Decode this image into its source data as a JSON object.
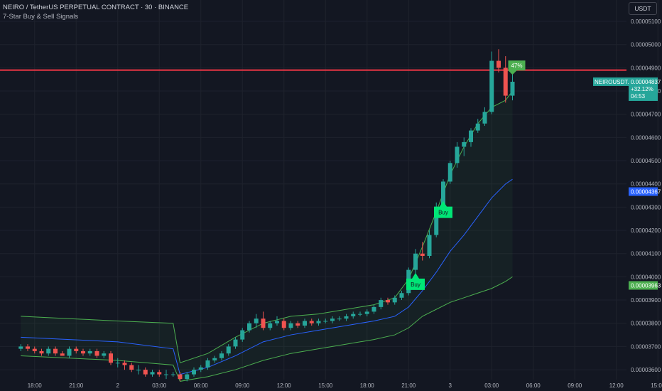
{
  "header": {
    "title": "NEIRO / TetherUS PERPETUAL CONTRACT · 30 · BINANCE",
    "indicator": "7-Star Buy & Sell Signals"
  },
  "toolbar": {
    "currency": "USDT"
  },
  "colors": {
    "background": "#131722",
    "up": "#26a69a",
    "down": "#ef5350",
    "resistance": "#f23645",
    "band_mid": "#2962ff",
    "band_outer": "#4caf50",
    "buy_signal": "#00e676"
  },
  "chart_data": {
    "type": "candlestick",
    "symbol_badge": {
      "name": "NEIROUSDT.P",
      "price": "0.00004837",
      "change": "+32.12%",
      "countdown": "04:53"
    },
    "price_badges": [
      {
        "value": "0.00004367",
        "color": "#2962ff"
      },
      {
        "value": "0.00003963",
        "color": "#4caf50"
      }
    ],
    "ylim": [
      3.58e-05,
      5.18e-05
    ],
    "yticks": [
      "0.00005100",
      "0.00005000",
      "0.00004900",
      "0.00004800",
      "0.00004700",
      "0.00004600",
      "0.00004500",
      "0.00004400",
      "0.00004300",
      "0.00004200",
      "0.00004100",
      "0.00004000",
      "0.00003900",
      "0.00003800",
      "0.00003700",
      "0.00003600"
    ],
    "xticks": [
      {
        "label": "18:00",
        "t": -19
      },
      {
        "label": "21:00",
        "t": -13
      },
      {
        "label": "2",
        "t": -7
      },
      {
        "label": "03:00",
        "t": -1
      },
      {
        "label": "06:00",
        "t": 5
      },
      {
        "label": "09:00",
        "t": 11
      },
      {
        "label": "12:00",
        "t": 17
      },
      {
        "label": "15:00",
        "t": 23
      },
      {
        "label": "18:00",
        "t": 29
      },
      {
        "label": "21:00",
        "t": 35
      },
      {
        "label": "3",
        "t": 41
      },
      {
        "label": "03:00",
        "t": 47
      },
      {
        "label": "06:00",
        "t": 53
      },
      {
        "label": "09:00",
        "t": 59
      },
      {
        "label": "12:00",
        "t": 65
      },
      {
        "label": "15:00",
        "t": 71
      }
    ],
    "resistance": 4.89e-05,
    "candles": [
      [
        -21,
        3.69e-05,
        3.71e-05,
        3.68e-05,
        3.7e-05
      ],
      [
        -20,
        3.7e-05,
        3.71e-05,
        3.68e-05,
        3.69e-05
      ],
      [
        -19,
        3.69e-05,
        3.7e-05,
        3.67e-05,
        3.68e-05
      ],
      [
        -18,
        3.68e-05,
        3.69e-05,
        3.66e-05,
        3.67e-05
      ],
      [
        -17,
        3.67e-05,
        3.7e-05,
        3.66e-05,
        3.69e-05
      ],
      [
        -16,
        3.69e-05,
        3.7e-05,
        3.66e-05,
        3.67e-05
      ],
      [
        -15,
        3.67e-05,
        3.68e-05,
        3.66e-05,
        3.66e-05
      ],
      [
        -14,
        3.66e-05,
        3.7e-05,
        3.65e-05,
        3.69e-05
      ],
      [
        -13,
        3.69e-05,
        3.7e-05,
        3.67e-05,
        3.68e-05
      ],
      [
        -12,
        3.68e-05,
        3.69e-05,
        3.66e-05,
        3.67e-05
      ],
      [
        -11,
        3.67e-05,
        3.69e-05,
        3.66e-05,
        3.68e-05
      ],
      [
        -10,
        3.68e-05,
        3.69e-05,
        3.65e-05,
        3.66e-05
      ],
      [
        -9,
        3.66e-05,
        3.68e-05,
        3.65e-05,
        3.67e-05
      ],
      [
        -8,
        3.67e-05,
        3.68e-05,
        3.62e-05,
        3.63e-05
      ],
      [
        -7,
        3.63e-05,
        3.65e-05,
        3.61e-05,
        3.63e-05
      ],
      [
        -6,
        3.63e-05,
        3.64e-05,
        3.6e-05,
        3.62e-05
      ],
      [
        -5,
        3.62e-05,
        3.63e-05,
        3.59e-05,
        3.6e-05
      ],
      [
        -4,
        3.6e-05,
        3.62e-05,
        3.58e-05,
        3.6e-05
      ],
      [
        -3,
        3.6e-05,
        3.61e-05,
        3.57e-05,
        3.58e-05
      ],
      [
        -2,
        3.58e-05,
        3.6e-05,
        3.57e-05,
        3.59e-05
      ],
      [
        -1,
        3.59e-05,
        3.6e-05,
        3.57e-05,
        3.58e-05
      ],
      [
        0,
        3.58e-05,
        3.6e-05,
        3.56e-05,
        3.58e-05
      ],
      [
        1,
        3.58e-05,
        3.59e-05,
        3.57e-05,
        3.58e-05
      ],
      [
        2,
        3.58e-05,
        3.59e-05,
        3.55e-05,
        3.56e-05
      ],
      [
        3,
        3.56e-05,
        3.59e-05,
        3.55e-05,
        3.58e-05
      ],
      [
        4,
        3.58e-05,
        3.61e-05,
        3.57e-05,
        3.6e-05
      ],
      [
        5,
        3.6e-05,
        3.62e-05,
        3.59e-05,
        3.61e-05
      ],
      [
        6,
        3.61e-05,
        3.65e-05,
        3.6e-05,
        3.64e-05
      ],
      [
        7,
        3.64e-05,
        3.66e-05,
        3.63e-05,
        3.65e-05
      ],
      [
        8,
        3.65e-05,
        3.68e-05,
        3.64e-05,
        3.67e-05
      ],
      [
        9,
        3.67e-05,
        3.71e-05,
        3.66e-05,
        3.7e-05
      ],
      [
        10,
        3.7e-05,
        3.74e-05,
        3.69e-05,
        3.73e-05
      ],
      [
        11,
        3.73e-05,
        3.78e-05,
        3.72e-05,
        3.77e-05
      ],
      [
        12,
        3.77e-05,
        3.81e-05,
        3.76e-05,
        3.8e-05
      ],
      [
        13,
        3.8e-05,
        3.84e-05,
        3.78e-05,
        3.82e-05
      ],
      [
        14,
        3.82e-05,
        3.85e-05,
        3.77e-05,
        3.78e-05
      ],
      [
        15,
        3.78e-05,
        3.81e-05,
        3.77e-05,
        3.8e-05
      ],
      [
        16,
        3.8e-05,
        3.83e-05,
        3.79e-05,
        3.81e-05
      ],
      [
        17,
        3.81e-05,
        3.82e-05,
        3.77e-05,
        3.78e-05
      ],
      [
        18,
        3.78e-05,
        3.81e-05,
        3.77e-05,
        3.8e-05
      ],
      [
        19,
        3.8e-05,
        3.81e-05,
        3.78e-05,
        3.79e-05
      ],
      [
        20,
        3.79e-05,
        3.82e-05,
        3.78e-05,
        3.81e-05
      ],
      [
        21,
        3.81e-05,
        3.82e-05,
        3.79e-05,
        3.8e-05
      ],
      [
        22,
        3.8e-05,
        3.82e-05,
        3.79e-05,
        3.81e-05
      ],
      [
        23,
        3.81e-05,
        3.82e-05,
        3.8e-05,
        3.81e-05
      ],
      [
        24,
        3.81e-05,
        3.83e-05,
        3.8e-05,
        3.82e-05
      ],
      [
        25,
        3.82e-05,
        3.83e-05,
        3.81e-05,
        3.82e-05
      ],
      [
        26,
        3.82e-05,
        3.84e-05,
        3.81e-05,
        3.83e-05
      ],
      [
        27,
        3.83e-05,
        3.85e-05,
        3.82e-05,
        3.84e-05
      ],
      [
        28,
        3.84e-05,
        3.85e-05,
        3.83e-05,
        3.84e-05
      ],
      [
        29,
        3.84e-05,
        3.86e-05,
        3.83e-05,
        3.85e-05
      ],
      [
        30,
        3.85e-05,
        3.88e-05,
        3.84e-05,
        3.87e-05
      ],
      [
        31,
        3.87e-05,
        3.91e-05,
        3.86e-05,
        3.9e-05
      ],
      [
        32,
        3.9e-05,
        3.91e-05,
        3.88e-05,
        3.89e-05
      ],
      [
        33,
        3.89e-05,
        3.92e-05,
        3.88e-05,
        3.91e-05
      ],
      [
        34,
        3.91e-05,
        3.94e-05,
        3.9e-05,
        3.93e-05
      ],
      [
        35,
        3.93e-05,
        4.04e-05,
        3.92e-05,
        4.03e-05
      ],
      [
        36,
        4.03e-05,
        4.12e-05,
        4.01e-05,
        4.1e-05
      ],
      [
        37,
        4.1e-05,
        4.15e-05,
        4.07e-05,
        4.09e-05
      ],
      [
        38,
        4.09e-05,
        4.2e-05,
        4.08e-05,
        4.18e-05
      ],
      [
        39,
        4.18e-05,
        4.32e-05,
        4.17e-05,
        4.3e-05
      ],
      [
        40,
        4.3e-05,
        4.42e-05,
        4.29e-05,
        4.41e-05
      ],
      [
        41,
        4.41e-05,
        4.5e-05,
        4.4e-05,
        4.49e-05
      ],
      [
        42,
        4.49e-05,
        4.58e-05,
        4.47e-05,
        4.56e-05
      ],
      [
        43,
        4.56e-05,
        4.6e-05,
        4.52e-05,
        4.58e-05
      ],
      [
        44,
        4.58e-05,
        4.64e-05,
        4.56e-05,
        4.63e-05
      ],
      [
        45,
        4.63e-05,
        4.68e-05,
        4.62e-05,
        4.66e-05
      ],
      [
        46,
        4.66e-05,
        4.73e-05,
        4.65e-05,
        4.71e-05
      ],
      [
        47,
        4.71e-05,
        4.97e-05,
        4.7e-05,
        4.93e-05
      ],
      [
        48,
        4.93e-05,
        4.98e-05,
        4.88e-05,
        4.9e-05
      ],
      [
        49,
        4.9e-05,
        4.95e-05,
        4.75e-05,
        4.78e-05
      ],
      [
        50,
        4.78e-05,
        4.9e-05,
        4.76e-05,
        4.84e-05
      ]
    ],
    "mid_band": [
      [
        -21,
        3.74e-05
      ],
      [
        -14,
        3.73e-05
      ],
      [
        -7,
        3.72e-05
      ],
      [
        1,
        3.69e-05
      ],
      [
        2,
        3.58e-05
      ],
      [
        6,
        3.61e-05
      ],
      [
        10,
        3.66e-05
      ],
      [
        14,
        3.72e-05
      ],
      [
        18,
        3.75e-05
      ],
      [
        22,
        3.77e-05
      ],
      [
        26,
        3.79e-05
      ],
      [
        30,
        3.81e-05
      ],
      [
        33,
        3.83e-05
      ],
      [
        35,
        3.87e-05
      ],
      [
        37,
        3.94e-05
      ],
      [
        39,
        4.02e-05
      ],
      [
        41,
        4.11e-05
      ],
      [
        43,
        4.18e-05
      ],
      [
        45,
        4.26e-05
      ],
      [
        47,
        4.34e-05
      ],
      [
        49,
        4.4e-05
      ],
      [
        50,
        4.42e-05
      ]
    ],
    "upper_band": [
      [
        -21,
        3.83e-05
      ],
      [
        -14,
        3.82e-05
      ],
      [
        -7,
        3.81e-05
      ],
      [
        1,
        3.8e-05
      ],
      [
        2,
        3.63e-05
      ],
      [
        6,
        3.67e-05
      ],
      [
        10,
        3.74e-05
      ],
      [
        14,
        3.8e-05
      ],
      [
        18,
        3.83e-05
      ],
      [
        22,
        3.84e-05
      ],
      [
        26,
        3.86e-05
      ],
      [
        30,
        3.88e-05
      ],
      [
        33,
        3.91e-05
      ],
      [
        35,
        3.99e-05
      ],
      [
        37,
        4.13e-05
      ],
      [
        39,
        4.28e-05
      ],
      [
        41,
        4.44e-05
      ],
      [
        43,
        4.56e-05
      ],
      [
        45,
        4.66e-05
      ],
      [
        47,
        4.73e-05
      ],
      [
        49,
        4.76e-05
      ],
      [
        50,
        4.8e-05
      ]
    ],
    "lower_band": [
      [
        -21,
        3.66e-05
      ],
      [
        -14,
        3.65e-05
      ],
      [
        -7,
        3.64e-05
      ],
      [
        1,
        3.62e-05
      ],
      [
        2,
        3.55e-05
      ],
      [
        6,
        3.57e-05
      ],
      [
        10,
        3.6e-05
      ],
      [
        14,
        3.64e-05
      ],
      [
        18,
        3.67e-05
      ],
      [
        22,
        3.69e-05
      ],
      [
        26,
        3.71e-05
      ],
      [
        30,
        3.73e-05
      ],
      [
        33,
        3.75e-05
      ],
      [
        35,
        3.78e-05
      ],
      [
        37,
        3.83e-05
      ],
      [
        39,
        3.86e-05
      ],
      [
        41,
        3.89e-05
      ],
      [
        43,
        3.91e-05
      ],
      [
        45,
        3.93e-05
      ],
      [
        47,
        3.95e-05
      ],
      [
        49,
        3.98e-05
      ],
      [
        50,
        4e-05
      ]
    ],
    "signals": [
      {
        "label": "Buy",
        "t": 36,
        "price": 3.98e-05
      },
      {
        "label": "Buy",
        "t": 40,
        "price": 4.29e-05
      }
    ],
    "target": {
      "label": "47%",
      "t": 50,
      "price": 4.91e-05
    }
  }
}
